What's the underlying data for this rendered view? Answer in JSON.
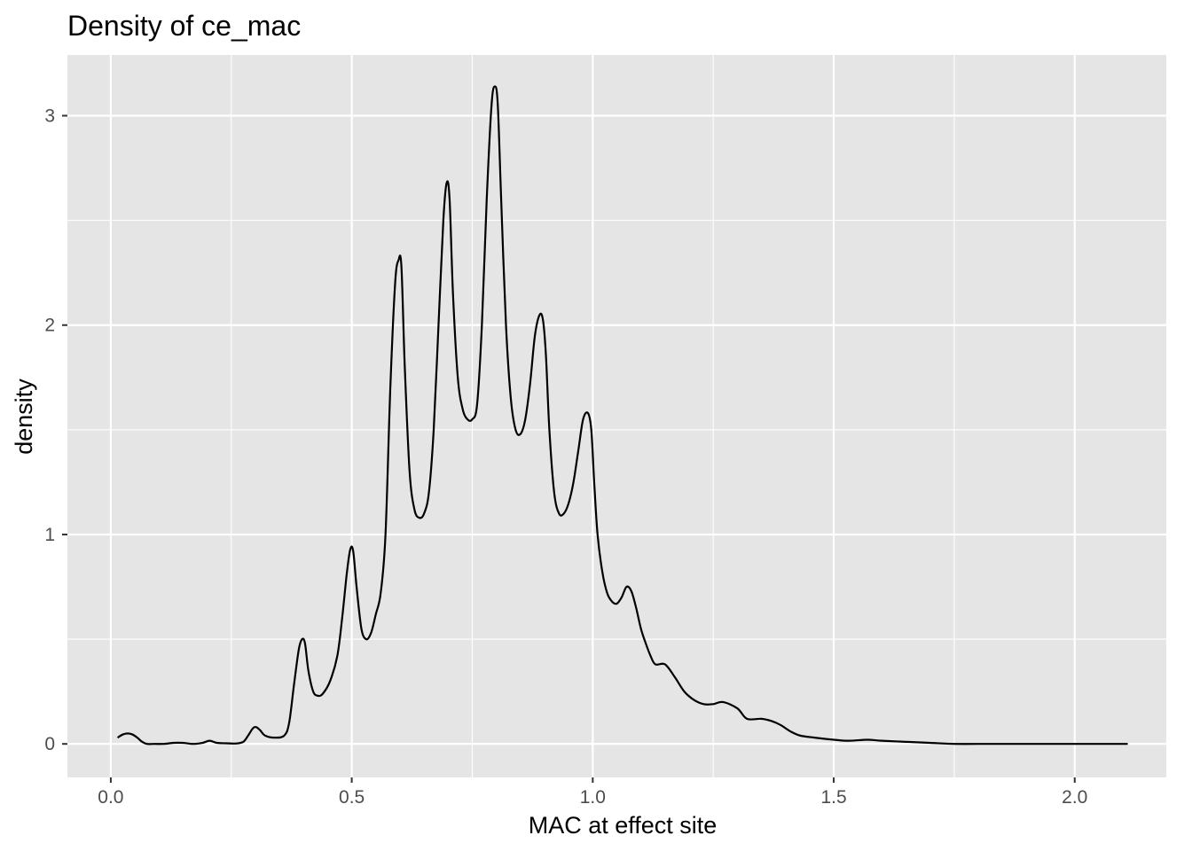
{
  "chart_data": {
    "type": "area",
    "title": "Density of ce_mac",
    "xlabel": "MAC at effect site",
    "ylabel": "density",
    "xlim": [
      -0.09,
      2.19
    ],
    "ylim": [
      -0.16,
      3.29
    ],
    "x_ticks": [
      0.0,
      0.5,
      1.0,
      1.5,
      2.0
    ],
    "x_tick_labels": [
      "0.0",
      "0.5",
      "1.0",
      "1.5",
      "2.0"
    ],
    "y_ticks": [
      0,
      1,
      2,
      3
    ],
    "y_tick_labels": [
      "0",
      "1",
      "2",
      "3"
    ],
    "grid": true,
    "legend": "none",
    "colors": {
      "panel": "#e5e5e5",
      "grid": "#ffffff",
      "line": "#000000"
    },
    "series": [
      {
        "x": [
          0.014,
          0.025,
          0.035,
          0.045,
          0.055,
          0.065,
          0.075,
          0.09,
          0.11,
          0.13,
          0.15,
          0.17,
          0.19,
          0.205,
          0.22,
          0.24,
          0.26,
          0.275,
          0.285,
          0.295,
          0.302,
          0.31,
          0.32,
          0.34,
          0.36,
          0.37,
          0.38,
          0.39,
          0.397,
          0.403,
          0.41,
          0.42,
          0.43,
          0.44,
          0.455,
          0.47,
          0.48,
          0.49,
          0.497,
          0.503,
          0.51,
          0.52,
          0.53,
          0.54,
          0.55,
          0.56,
          0.57,
          0.58,
          0.59,
          0.597,
          0.603,
          0.61,
          0.62,
          0.63,
          0.64,
          0.65,
          0.66,
          0.67,
          0.68,
          0.69,
          0.697,
          0.703,
          0.71,
          0.72,
          0.73,
          0.74,
          0.75,
          0.76,
          0.77,
          0.78,
          0.79,
          0.797,
          0.803,
          0.81,
          0.82,
          0.83,
          0.84,
          0.85,
          0.86,
          0.87,
          0.88,
          0.89,
          0.897,
          0.903,
          0.91,
          0.92,
          0.93,
          0.94,
          0.95,
          0.96,
          0.97,
          0.98,
          0.99,
          0.997,
          1.003,
          1.01,
          1.02,
          1.03,
          1.04,
          1.05,
          1.06,
          1.07,
          1.08,
          1.09,
          1.1,
          1.11,
          1.12,
          1.13,
          1.15,
          1.17,
          1.19,
          1.21,
          1.23,
          1.25,
          1.27,
          1.3,
          1.32,
          1.35,
          1.37,
          1.39,
          1.41,
          1.43,
          1.46,
          1.5,
          1.53,
          1.57,
          1.6,
          1.65,
          1.7,
          1.75,
          1.8,
          1.9,
          2.0,
          2.05,
          2.11
        ],
        "y": [
          0.03,
          0.045,
          0.05,
          0.045,
          0.03,
          0.01,
          0.0,
          0.0,
          0.0,
          0.005,
          0.005,
          0.0,
          0.005,
          0.015,
          0.005,
          0.003,
          0.002,
          0.01,
          0.04,
          0.075,
          0.08,
          0.065,
          0.04,
          0.03,
          0.04,
          0.1,
          0.28,
          0.45,
          0.5,
          0.48,
          0.35,
          0.25,
          0.23,
          0.24,
          0.3,
          0.42,
          0.6,
          0.82,
          0.93,
          0.92,
          0.75,
          0.55,
          0.5,
          0.53,
          0.62,
          0.72,
          1.0,
          1.7,
          2.2,
          2.31,
          2.28,
          1.8,
          1.3,
          1.12,
          1.08,
          1.1,
          1.2,
          1.5,
          2.0,
          2.5,
          2.68,
          2.6,
          2.15,
          1.75,
          1.6,
          1.55,
          1.55,
          1.62,
          2.0,
          2.6,
          3.05,
          3.14,
          3.05,
          2.6,
          2.0,
          1.65,
          1.5,
          1.48,
          1.55,
          1.72,
          1.95,
          2.05,
          2.02,
          1.85,
          1.5,
          1.2,
          1.1,
          1.1,
          1.15,
          1.25,
          1.4,
          1.55,
          1.58,
          1.5,
          1.25,
          1.0,
          0.82,
          0.72,
          0.68,
          0.67,
          0.7,
          0.75,
          0.73,
          0.65,
          0.55,
          0.48,
          0.42,
          0.38,
          0.38,
          0.32,
          0.25,
          0.21,
          0.19,
          0.19,
          0.2,
          0.17,
          0.12,
          0.12,
          0.11,
          0.09,
          0.06,
          0.04,
          0.03,
          0.02,
          0.015,
          0.02,
          0.015,
          0.01,
          0.005,
          0.0,
          0.0,
          0.0,
          0.0,
          0.0,
          0.0
        ]
      }
    ]
  }
}
